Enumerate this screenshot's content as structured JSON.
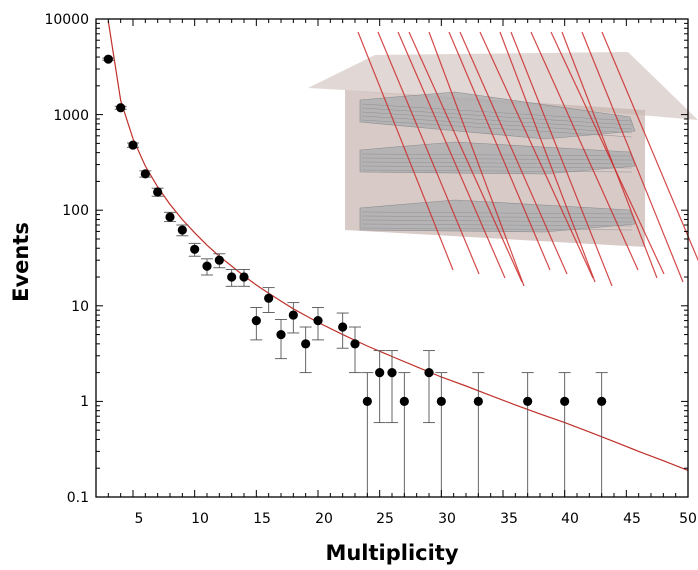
{
  "chart_data": {
    "type": "scatter",
    "title": "",
    "xlabel": "Multiplicity",
    "ylabel": "Events",
    "xlim": [
      2,
      50
    ],
    "ylim": [
      0.1,
      10000
    ],
    "yscale": "log",
    "grid": false,
    "legend": "none",
    "x_ticks": [
      "5",
      "10",
      "15",
      "20",
      "25",
      "30",
      "35",
      "40",
      "45",
      "50"
    ],
    "y_ticks": [
      "0.1",
      "1",
      "10",
      "100",
      "1000",
      "10000"
    ],
    "colors": {
      "points": "#000000",
      "errorbars": "#555555",
      "fit": "#c0302a",
      "tracks": "#cc2a2a",
      "box": "#c9b6b0"
    },
    "series": [
      {
        "points": [
          {
            "x": 3,
            "y": 3800,
            "lo": 3700,
            "hi": 3900
          },
          {
            "x": 4,
            "y": 1180,
            "lo": 1140,
            "hi": 1220
          },
          {
            "x": 5,
            "y": 480,
            "lo": 455,
            "hi": 505
          },
          {
            "x": 6,
            "y": 240,
            "lo": 222,
            "hi": 258
          },
          {
            "x": 7,
            "y": 155,
            "lo": 140,
            "hi": 170
          },
          {
            "x": 8,
            "y": 85,
            "lo": 76,
            "hi": 95
          },
          {
            "x": 9,
            "y": 62,
            "lo": 54,
            "hi": 70
          },
          {
            "x": 10,
            "y": 39,
            "lo": 33,
            "hi": 45
          },
          {
            "x": 11,
            "y": 26,
            "lo": 21,
            "hi": 31
          },
          {
            "x": 12,
            "y": 30,
            "lo": 25,
            "hi": 35
          },
          {
            "x": 13,
            "y": 20,
            "lo": 16,
            "hi": 24
          },
          {
            "x": 14,
            "y": 20,
            "lo": 16,
            "hi": 24
          },
          {
            "x": 15,
            "y": 7,
            "lo": 4.4,
            "hi": 9.6
          },
          {
            "x": 16,
            "y": 12,
            "lo": 8.5,
            "hi": 15.5
          },
          {
            "x": 17,
            "y": 5,
            "lo": 2.8,
            "hi": 7.2
          },
          {
            "x": 18,
            "y": 8,
            "lo": 5.2,
            "hi": 10.8
          },
          {
            "x": 19,
            "y": 4,
            "lo": 2.0,
            "hi": 6.0
          },
          {
            "x": 20,
            "y": 7,
            "lo": 4.4,
            "hi": 9.6
          },
          {
            "x": 22,
            "y": 6,
            "lo": 3.6,
            "hi": 8.4
          },
          {
            "x": 23,
            "y": 4,
            "lo": 2.0,
            "hi": 6.0
          },
          {
            "x": 24,
            "y": 1,
            "lo": 0.1,
            "hi": 2.0
          },
          {
            "x": 25,
            "y": 2,
            "lo": 0.6,
            "hi": 3.4
          },
          {
            "x": 26,
            "y": 2,
            "lo": 0.6,
            "hi": 3.4
          },
          {
            "x": 27,
            "y": 1,
            "lo": 0.1,
            "hi": 2.0
          },
          {
            "x": 29,
            "y": 2,
            "lo": 0.6,
            "hi": 3.4
          },
          {
            "x": 30,
            "y": 1,
            "lo": 0.1,
            "hi": 2.0
          },
          {
            "x": 33,
            "y": 1,
            "lo": 0.1,
            "hi": 2.0
          },
          {
            "x": 37,
            "y": 1,
            "lo": 0.1,
            "hi": 2.0
          },
          {
            "x": 40,
            "y": 1,
            "lo": 0.1,
            "hi": 2.0
          },
          {
            "x": 43,
            "y": 1,
            "lo": 0.1,
            "hi": 2.0
          }
        ]
      }
    ],
    "fit_curve": [
      [
        3,
        9500
      ],
      [
        4,
        1400
      ],
      [
        5,
        560
      ],
      [
        6,
        290
      ],
      [
        7,
        175
      ],
      [
        8,
        115
      ],
      [
        9,
        80
      ],
      [
        10,
        58
      ],
      [
        11,
        43
      ],
      [
        12,
        33
      ],
      [
        13,
        26
      ],
      [
        14,
        20.5
      ],
      [
        15,
        16.5
      ],
      [
        16,
        13.5
      ],
      [
        17,
        11.2
      ],
      [
        18,
        9.3
      ],
      [
        19,
        7.9
      ],
      [
        20,
        6.7
      ],
      [
        22,
        5.0
      ],
      [
        24,
        3.8
      ],
      [
        26,
        2.95
      ],
      [
        28,
        2.3
      ],
      [
        30,
        1.8
      ],
      [
        32,
        1.45
      ],
      [
        34,
        1.15
      ],
      [
        36,
        0.92
      ],
      [
        38,
        0.74
      ],
      [
        40,
        0.6
      ],
      [
        42,
        0.48
      ],
      [
        44,
        0.38
      ],
      [
        46,
        0.3
      ],
      [
        48,
        0.24
      ],
      [
        50,
        0.19
      ]
    ]
  }
}
